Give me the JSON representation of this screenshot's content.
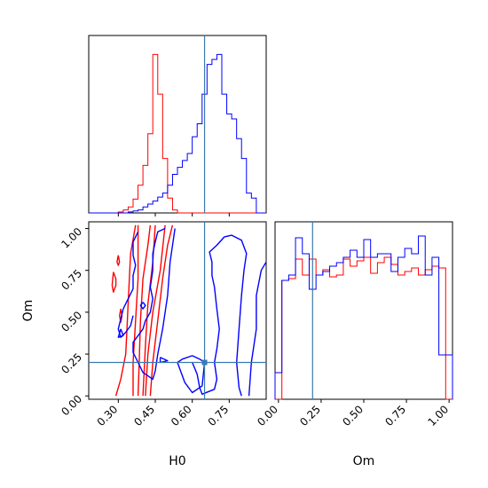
{
  "chart_data": {
    "type": "corner",
    "parameters": [
      "H0",
      "Om"
    ],
    "truth": {
      "H0": 0.65,
      "Om": 0.2
    },
    "colors": {
      "series_a": "#ff0000",
      "series_b": "#0000ff",
      "truth": "#3a7ab0",
      "axes": "#000000"
    },
    "grid": false,
    "panels": [
      {
        "id": "hist-H0",
        "type": "step-histogram",
        "x": "H0",
        "xlim": [
          0.18,
          0.9
        ],
        "xticks": [
          "0.30",
          "0.45",
          "0.60",
          "0.75"
        ],
        "xtick_values": [
          0.3,
          0.45,
          0.6,
          0.75
        ],
        "tick_labels_shown": false,
        "bin_edges": [
          0.18,
          0.2,
          0.22,
          0.24,
          0.26,
          0.28,
          0.3,
          0.32,
          0.34,
          0.36,
          0.38,
          0.4,
          0.42,
          0.44,
          0.46,
          0.48,
          0.5,
          0.52,
          0.54,
          0.56,
          0.58,
          0.6,
          0.62,
          0.64,
          0.66,
          0.68,
          0.7,
          0.72,
          0.74,
          0.76,
          0.78,
          0.8,
          0.82,
          0.84,
          0.86,
          0.88,
          0.9
        ],
        "series": [
          {
            "color_key": "series_a",
            "counts": [
              0,
              0,
              0,
              0,
              0,
              0,
              1,
              3,
              6,
              14,
              28,
              48,
              80,
              160,
              120,
              55,
              15,
              3,
              0,
              0,
              0,
              0,
              0,
              0,
              0,
              0,
              0,
              0,
              0,
              0,
              0,
              0,
              0,
              0,
              0,
              0
            ]
          },
          {
            "color_key": "series_b",
            "counts": [
              0,
              0,
              0,
              0,
              0,
              0,
              0,
              0,
              1,
              2,
              3,
              6,
              9,
              12,
              16,
              20,
              28,
              39,
              46,
              53,
              60,
              77,
              90,
              120,
              150,
              155,
              160,
              120,
              100,
              95,
              75,
              55,
              20,
              15,
              0,
              0
            ]
          }
        ]
      },
      {
        "id": "hist-Om",
        "type": "step-histogram",
        "x": "Om",
        "xlim": [
          -0.02,
          1.02
        ],
        "xticks": [
          "0.00",
          "0.25",
          "0.50",
          "0.75",
          "1.00"
        ],
        "xtick_values": [
          0.0,
          0.25,
          0.5,
          0.75,
          1.0
        ],
        "bin_edges": [
          -0.02,
          0.02,
          0.06,
          0.1,
          0.14,
          0.18,
          0.22,
          0.26,
          0.3,
          0.34,
          0.38,
          0.42,
          0.46,
          0.5,
          0.54,
          0.58,
          0.62,
          0.66,
          0.7,
          0.74,
          0.78,
          0.82,
          0.86,
          0.9,
          0.94,
          0.98,
          1.02
        ],
        "ylim": [
          0,
          1.0
        ],
        "series": [
          {
            "color_key": "series_a",
            "counts": [
              0,
              0.67,
              0.68,
              0.79,
              0.7,
              0.79,
              0.7,
              0.73,
              0.69,
              0.7,
              0.79,
              0.75,
              0.78,
              0.8,
              0.71,
              0.77,
              0.8,
              0.76,
              0.7,
              0.72,
              0.74,
              0.7,
              0.73,
              0.75,
              0.74,
              0.0
            ]
          },
          {
            "color_key": "series_b",
            "counts": [
              0.15,
              0.67,
              0.7,
              0.91,
              0.82,
              0.62,
              0.7,
              0.72,
              0.75,
              0.77,
              0.8,
              0.84,
              0.8,
              0.9,
              0.8,
              0.82,
              0.82,
              0.72,
              0.8,
              0.85,
              0.82,
              0.92,
              0.7,
              0.8,
              0.25,
              0.25
            ]
          }
        ]
      },
      {
        "id": "contour-H0-Om",
        "type": "contour",
        "x": "H0",
        "y": "Om",
        "xlim": [
          0.18,
          0.9
        ],
        "ylim": [
          -0.02,
          1.04
        ],
        "xlabel": "H0",
        "ylabel": "Om",
        "xticks": [
          "0.30",
          "0.45",
          "0.60",
          "0.75"
        ],
        "xtick_values": [
          0.3,
          0.45,
          0.6,
          0.75
        ],
        "yticks": [
          "0.00",
          "0.25",
          "0.50",
          "0.75",
          "1.00"
        ],
        "ytick_values": [
          0.0,
          0.25,
          0.5,
          0.75,
          1.0
        ],
        "series": [
          {
            "color_key": "series_a",
            "contours": [
              [
                [
                  0.29,
                  0.0
                ],
                [
                  0.31,
                  0.1
                ],
                [
                  0.33,
                  0.25
                ],
                [
                  0.335,
                  0.4
                ],
                [
                  0.34,
                  0.55
                ],
                [
                  0.345,
                  0.7
                ],
                [
                  0.35,
                  0.85
                ],
                [
                  0.37,
                  1.02
                ]
              ],
              [
                [
                  0.38,
                  0.0
                ],
                [
                  0.385,
                  0.2
                ],
                [
                  0.39,
                  0.45
                ],
                [
                  0.4,
                  0.7
                ],
                [
                  0.42,
                  0.9
                ],
                [
                  0.43,
                  1.02
                ]
              ],
              [
                [
                  0.43,
                  0.0
                ],
                [
                  0.44,
                  0.2
                ],
                [
                  0.46,
                  0.45
                ],
                [
                  0.48,
                  0.7
                ],
                [
                  0.5,
                  0.9
                ],
                [
                  0.52,
                  1.02
                ]
              ],
              [
                [
                  0.36,
                  0.0
                ],
                [
                  0.36,
                  0.2
                ],
                [
                  0.37,
                  0.45
                ],
                [
                  0.38,
                  0.7
                ],
                [
                  0.38,
                  1.02
                ]
              ],
              [
                [
                  0.41,
                  0.0
                ],
                [
                  0.42,
                  0.25
                ],
                [
                  0.44,
                  0.5
                ],
                [
                  0.47,
                  0.75
                ],
                [
                  0.49,
                  1.02
                ]
              ],
              [
                [
                  0.4,
                  0.0
                ],
                [
                  0.41,
                  0.3
                ],
                [
                  0.42,
                  0.55
                ],
                [
                  0.44,
                  0.8
                ],
                [
                  0.45,
                  1.02
                ]
              ],
              [
                [
                  0.28,
                  0.74
                ],
                [
                  0.29,
                  0.7
                ],
                [
                  0.29,
                  0.66
                ],
                [
                  0.28,
                  0.62
                ],
                [
                  0.275,
                  0.66
                ],
                [
                  0.28,
                  0.74
                ]
              ],
              [
                [
                  0.31,
                  0.52
                ],
                [
                  0.315,
                  0.48
                ],
                [
                  0.31,
                  0.44
                ],
                [
                  0.305,
                  0.48
                ],
                [
                  0.31,
                  0.52
                ]
              ],
              [
                [
                  0.3,
                  0.84
                ],
                [
                  0.305,
                  0.8
                ],
                [
                  0.3,
                  0.78
                ],
                [
                  0.295,
                  0.8
                ],
                [
                  0.3,
                  0.84
                ]
              ]
            ]
          },
          {
            "color_key": "series_b",
            "contours": [
              [
                [
                  0.49,
                  1.0
                ],
                [
                  0.46,
                  0.98
                ],
                [
                  0.45,
                  0.92
                ],
                [
                  0.44,
                  0.85
                ],
                [
                  0.44,
                  0.75
                ],
                [
                  0.43,
                  0.65
                ],
                [
                  0.44,
                  0.58
                ],
                [
                  0.43,
                  0.5
                ],
                [
                  0.41,
                  0.45
                ],
                [
                  0.4,
                  0.4
                ],
                [
                  0.38,
                  0.36
                ],
                [
                  0.36,
                  0.32
                ],
                [
                  0.36,
                  0.26
                ],
                [
                  0.38,
                  0.2
                ],
                [
                  0.4,
                  0.14
                ],
                [
                  0.42,
                  0.12
                ],
                [
                  0.44,
                  0.1
                ],
                [
                  0.45,
                  0.15
                ],
                [
                  0.46,
                  0.25
                ],
                [
                  0.48,
                  0.4
                ],
                [
                  0.5,
                  0.6
                ],
                [
                  0.51,
                  0.8
                ],
                [
                  0.53,
                  1.0
                ]
              ],
              [
                [
                  0.38,
                  0.98
                ],
                [
                  0.36,
                  0.92
                ],
                [
                  0.36,
                  0.84
                ],
                [
                  0.37,
                  0.78
                ],
                [
                  0.36,
                  0.72
                ],
                [
                  0.36,
                  0.64
                ],
                [
                  0.34,
                  0.58
                ],
                [
                  0.32,
                  0.52
                ],
                [
                  0.31,
                  0.46
                ],
                [
                  0.3,
                  0.4
                ],
                [
                  0.31,
                  0.35
                ],
                [
                  0.33,
                  0.38
                ],
                [
                  0.35,
                  0.42
                ],
                [
                  0.36,
                  0.48
                ]
              ],
              [
                [
                  0.6,
                  0.2
                ],
                [
                  0.62,
                  0.13
                ],
                [
                  0.63,
                  0.05
                ],
                [
                  0.64,
                  0.01
                ],
                [
                  0.69,
                  0.04
                ],
                [
                  0.7,
                  0.1
                ],
                [
                  0.69,
                  0.2
                ],
                [
                  0.7,
                  0.28
                ],
                [
                  0.71,
                  0.4
                ],
                [
                  0.7,
                  0.52
                ],
                [
                  0.69,
                  0.65
                ],
                [
                  0.68,
                  0.72
                ],
                [
                  0.68,
                  0.8
                ],
                [
                  0.67,
                  0.86
                ],
                [
                  0.7,
                  0.9
                ],
                [
                  0.73,
                  0.95
                ],
                [
                  0.76,
                  0.96
                ],
                [
                  0.8,
                  0.93
                ],
                [
                  0.82,
                  0.85
                ],
                [
                  0.81,
                  0.75
                ],
                [
                  0.8,
                  0.6
                ],
                [
                  0.79,
                  0.4
                ],
                [
                  0.78,
                  0.2
                ],
                [
                  0.79,
                  0.05
                ],
                [
                  0.8,
                  0.0
                ]
              ],
              [
                [
                  0.54,
                  0.2
                ],
                [
                  0.57,
                  0.08
                ],
                [
                  0.6,
                  0.02
                ],
                [
                  0.64,
                  0.06
                ],
                [
                  0.65,
                  0.2
                ],
                [
                  0.63,
                  0.22
                ],
                [
                  0.6,
                  0.24
                ],
                [
                  0.56,
                  0.22
                ],
                [
                  0.54,
                  0.2
                ]
              ],
              [
                [
                  0.83,
                  0.0
                ],
                [
                  0.84,
                  0.2
                ],
                [
                  0.86,
                  0.4
                ],
                [
                  0.86,
                  0.6
                ],
                [
                  0.88,
                  0.75
                ],
                [
                  0.9,
                  0.8
                ]
              ],
              [
                [
                  0.47,
                  0.23
                ],
                [
                  0.5,
                  0.21
                ],
                [
                  0.47,
                  0.2
                ],
                [
                  0.47,
                  0.23
                ]
              ],
              [
                [
                  0.4,
                  0.56
                ],
                [
                  0.41,
                  0.54
                ],
                [
                  0.4,
                  0.52
                ],
                [
                  0.39,
                  0.54
                ],
                [
                  0.4,
                  0.56
                ]
              ],
              [
                [
                  0.31,
                  0.4
                ],
                [
                  0.32,
                  0.36
                ],
                [
                  0.3,
                  0.35
                ],
                [
                  0.31,
                  0.4
                ]
              ]
            ]
          }
        ]
      }
    ]
  }
}
